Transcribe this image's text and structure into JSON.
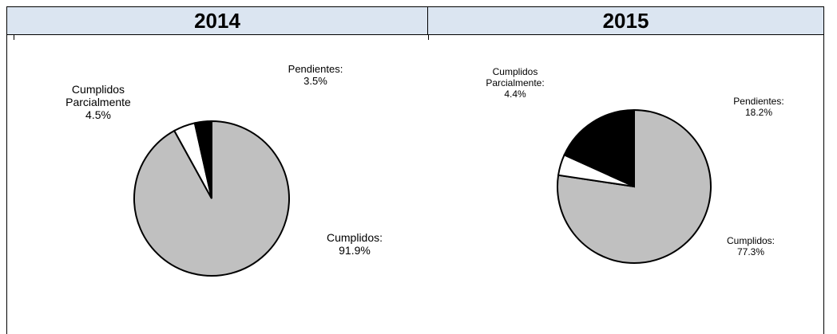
{
  "headers": {
    "left": "2014",
    "right": "2015"
  },
  "colors": {
    "header_bg": "#dbe5f1",
    "cumplidos": "#c0c0c0",
    "parciales": "#ffffff",
    "pendientes": "#000000"
  },
  "chart_data": [
    {
      "type": "pie",
      "title": "2014",
      "categories": [
        "Cumplidos",
        "Cumplidos Parcialmente",
        "Pendientes"
      ],
      "values": [
        91.9,
        4.5,
        3.5
      ],
      "labels": {
        "cumplidos": "Cumplidos:\n91.9%",
        "parciales": "Cumplidos\nParcialmente\n4.5%",
        "pendientes": "Pendientes:\n3.5%"
      }
    },
    {
      "type": "pie",
      "title": "2015",
      "categories": [
        "Cumplidos",
        "Cumplidos Parcialmente",
        "Pendientes"
      ],
      "values": [
        77.3,
        4.4,
        18.2
      ],
      "labels": {
        "cumplidos": "Cumplidos:\n77.3%",
        "parciales": "Cumplidos\nParcialmente:\n4.4%",
        "pendientes": "Pendientes:\n18.2%"
      }
    }
  ]
}
